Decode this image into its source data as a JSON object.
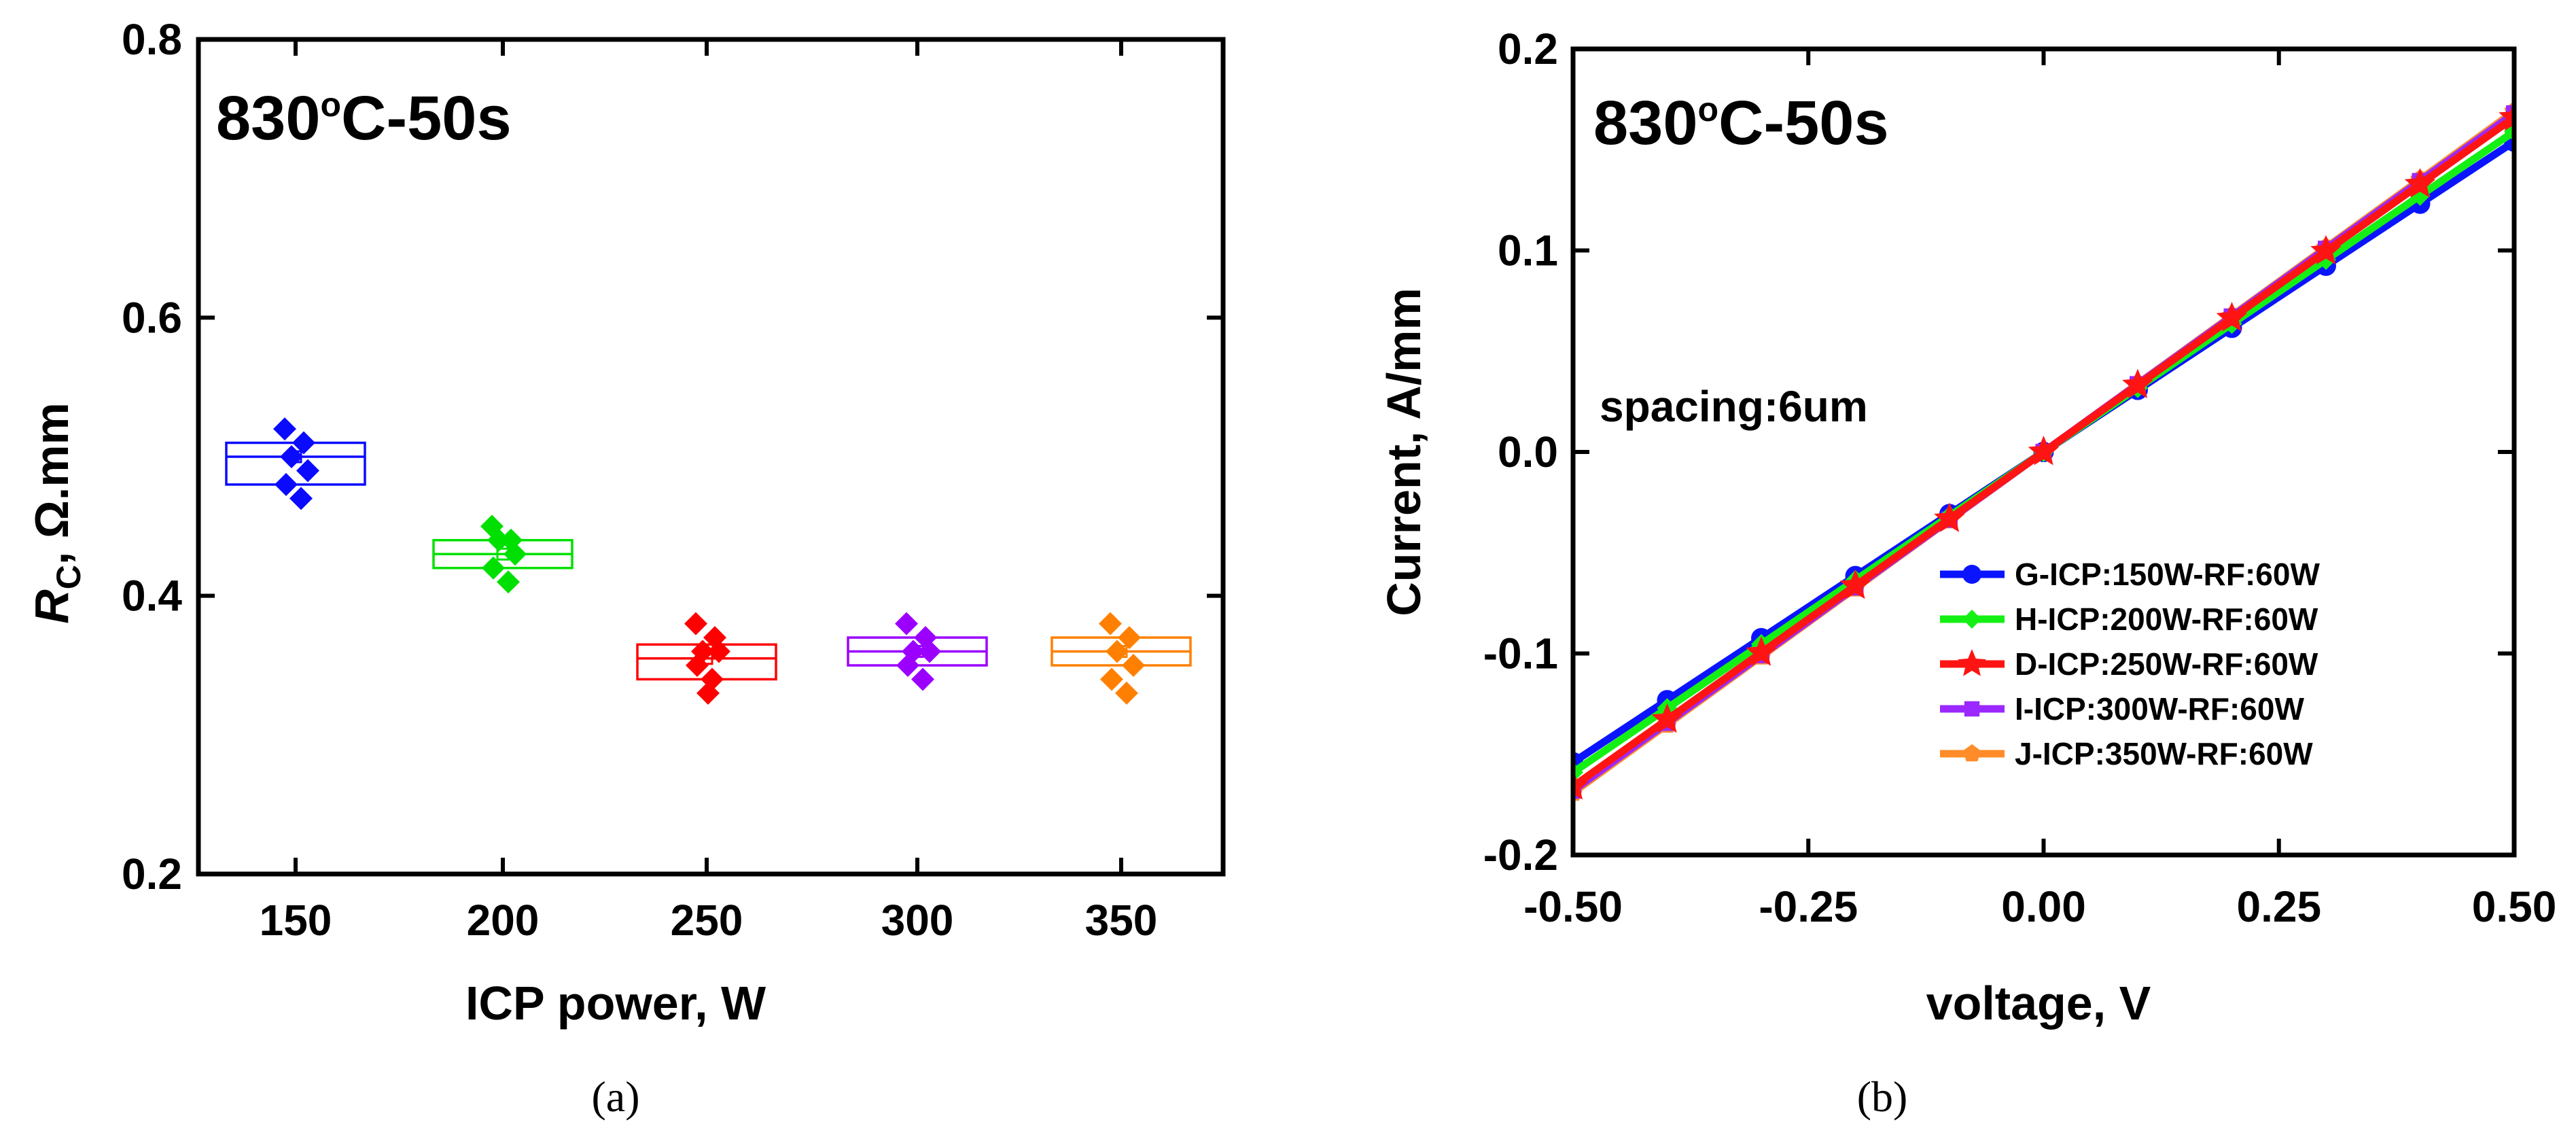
{
  "chart_data": [
    {
      "id": "a",
      "type": "box",
      "caption": "(a)",
      "corner_label": {
        "main": "830",
        "sup": "o",
        "rest": "C-50s"
      },
      "xlabel": "ICP power, W",
      "ylabel": {
        "italic": "R",
        "sub": "C",
        "rest": ", Ω.mm"
      },
      "categories": [
        "150",
        "200",
        "250",
        "300",
        "350"
      ],
      "ylim": [
        0.2,
        0.8
      ],
      "yticks": [
        0.2,
        0.4,
        0.6,
        0.8
      ],
      "ytick_labels": [
        "0.2",
        "0.4",
        "0.6",
        "0.8"
      ],
      "series": [
        {
          "name": "150",
          "color": "#0a0aff",
          "box": {
            "q1": 0.48,
            "median": 0.5,
            "q3": 0.51,
            "mean": 0.5
          },
          "points": [
            0.52,
            0.51,
            0.5,
            0.49,
            0.48,
            0.47
          ]
        },
        {
          "name": "200",
          "color": "#00e000",
          "box": {
            "q1": 0.42,
            "median": 0.43,
            "q3": 0.44,
            "mean": 0.43
          },
          "points": [
            0.45,
            0.44,
            0.44,
            0.43,
            0.42,
            0.41
          ]
        },
        {
          "name": "250",
          "color": "#ff0000",
          "box": {
            "q1": 0.34,
            "median": 0.355,
            "q3": 0.365,
            "mean": 0.355
          },
          "points": [
            0.38,
            0.37,
            0.36,
            0.36,
            0.35,
            0.34,
            0.33
          ]
        },
        {
          "name": "300",
          "color": "#9b00ff",
          "box": {
            "q1": 0.35,
            "median": 0.36,
            "q3": 0.37,
            "mean": 0.36
          },
          "points": [
            0.38,
            0.37,
            0.36,
            0.36,
            0.35,
            0.34
          ]
        },
        {
          "name": "350",
          "color": "#ff8000",
          "box": {
            "q1": 0.35,
            "median": 0.36,
            "q3": 0.37,
            "mean": 0.36
          },
          "points": [
            0.38,
            0.37,
            0.36,
            0.35,
            0.34,
            0.33
          ]
        }
      ]
    },
    {
      "id": "b",
      "type": "line",
      "caption": "(b)",
      "corner_label": {
        "main": "830",
        "sup": "o",
        "rest": "C-50s"
      },
      "annotation": "spacing:6um",
      "xlabel": "voltage, V",
      "ylabel": "Current, A/mm",
      "xlim": [
        -0.5,
        0.5
      ],
      "ylim": [
        -0.2,
        0.2
      ],
      "xticks": [
        -0.5,
        -0.25,
        0,
        0.25,
        0.5
      ],
      "xtick_labels": [
        "-0.50",
        "-0.25",
        "0.00",
        "0.25",
        "0.50"
      ],
      "yticks": [
        -0.2,
        -0.1,
        0,
        0.1,
        0.2
      ],
      "ytick_labels": [
        "-0.2",
        "-0.1",
        "0.0",
        "0.1",
        "0.2"
      ],
      "x": [
        -0.5,
        -0.4,
        -0.3,
        -0.2,
        -0.1,
        0,
        0.1,
        0.2,
        0.3,
        0.4,
        0.5
      ],
      "legend_position": "bottom-right",
      "series": [
        {
          "name": "G-ICP:150W-RF:60W",
          "color": "#0a14ff",
          "marker": "circle",
          "slope": 0.308
        },
        {
          "name": "J-ICP:350W-RF:60W",
          "color": "#ff8c28",
          "marker": "pentagon",
          "slope": 0.338
        },
        {
          "name": "I-ICP:300W-RF:60W",
          "color": "#9b28ff",
          "marker": "square",
          "slope": 0.336
        },
        {
          "name": "H-ICP:200W-RF:60W",
          "color": "#14f014",
          "marker": "diamond",
          "slope": 0.318
        },
        {
          "name": "D-ICP:250W-RF:60W",
          "color": "#ff1414",
          "marker": "star",
          "slope": 0.332
        }
      ],
      "legend_order": [
        0,
        3,
        4,
        2,
        1
      ]
    }
  ]
}
